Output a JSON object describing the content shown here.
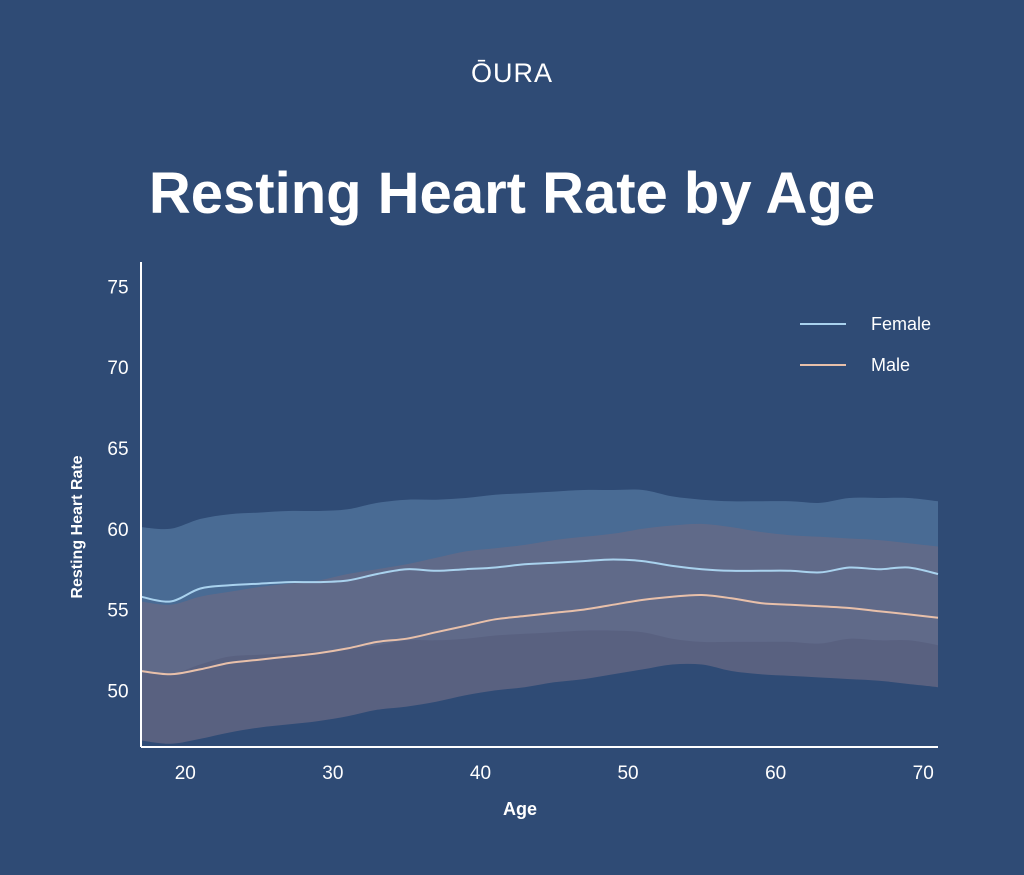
{
  "brand": "ŌURA",
  "title": "Resting Heart Rate by Age",
  "colors": {
    "background": "#2f4b75",
    "female_line": "#a9d2ee",
    "male_line": "#e8c0aa",
    "female_band": "#4d6f98",
    "male_band": "#6a6a85",
    "axis": "#ffffff"
  },
  "chart_data": {
    "type": "line",
    "title": "Resting Heart Rate by Age",
    "xlabel": "Age",
    "ylabel": "Resting Heart Rate",
    "xlim": [
      17,
      71
    ],
    "ylim": [
      46.5,
      76.5
    ],
    "x_ticks": [
      20,
      30,
      40,
      50,
      60,
      70
    ],
    "y_ticks": [
      50,
      55,
      60,
      65,
      70,
      75
    ],
    "grid": false,
    "legend_position": "top-right",
    "x": [
      17,
      19,
      21,
      23,
      25,
      27,
      29,
      31,
      33,
      35,
      37,
      39,
      41,
      43,
      45,
      47,
      49,
      51,
      53,
      55,
      57,
      59,
      61,
      63,
      65,
      67,
      69,
      71
    ],
    "series": [
      {
        "name": "Female",
        "color": "#a9d2ee",
        "values": [
          55.8,
          55.5,
          56.3,
          56.5,
          56.6,
          56.7,
          56.7,
          56.8,
          57.2,
          57.5,
          57.4,
          57.5,
          57.6,
          57.8,
          57.9,
          58.0,
          58.1,
          58.0,
          57.7,
          57.5,
          57.4,
          57.4,
          57.4,
          57.3,
          57.6,
          57.5,
          57.6,
          57.2
        ],
        "band_upper": [
          60.1,
          60.0,
          60.6,
          60.9,
          61.0,
          61.1,
          61.1,
          61.2,
          61.6,
          61.8,
          61.8,
          61.9,
          62.1,
          62.2,
          62.3,
          62.4,
          62.4,
          62.4,
          62.0,
          61.8,
          61.7,
          61.7,
          61.7,
          61.6,
          61.9,
          61.9,
          61.9,
          61.7
        ],
        "band_lower": [
          51.2,
          51.0,
          51.6,
          52.1,
          52.2,
          52.3,
          52.4,
          52.6,
          52.8,
          53.1,
          53.1,
          53.2,
          53.4,
          53.5,
          53.6,
          53.7,
          53.7,
          53.6,
          53.2,
          53.0,
          53.0,
          53.0,
          53.0,
          52.9,
          53.2,
          53.1,
          53.1,
          52.8
        ]
      },
      {
        "name": "Male",
        "color": "#e8c0aa",
        "values": [
          51.2,
          51.0,
          51.3,
          51.7,
          51.9,
          52.1,
          52.3,
          52.6,
          53.0,
          53.2,
          53.6,
          54.0,
          54.4,
          54.6,
          54.8,
          55.0,
          55.3,
          55.6,
          55.8,
          55.9,
          55.7,
          55.4,
          55.3,
          55.2,
          55.1,
          54.9,
          54.7,
          54.5
        ],
        "band_upper": [
          55.5,
          55.3,
          55.8,
          56.1,
          56.4,
          56.6,
          56.8,
          57.2,
          57.5,
          57.8,
          58.2,
          58.6,
          58.8,
          59.0,
          59.3,
          59.5,
          59.7,
          60.0,
          60.2,
          60.3,
          60.1,
          59.8,
          59.6,
          59.5,
          59.4,
          59.3,
          59.1,
          58.9
        ],
        "band_lower": [
          46.9,
          46.7,
          47.0,
          47.4,
          47.7,
          47.9,
          48.1,
          48.4,
          48.8,
          49.0,
          49.3,
          49.7,
          50.0,
          50.2,
          50.5,
          50.7,
          51.0,
          51.3,
          51.6,
          51.6,
          51.2,
          51.0,
          50.9,
          50.8,
          50.7,
          50.6,
          50.4,
          50.2
        ]
      }
    ]
  }
}
